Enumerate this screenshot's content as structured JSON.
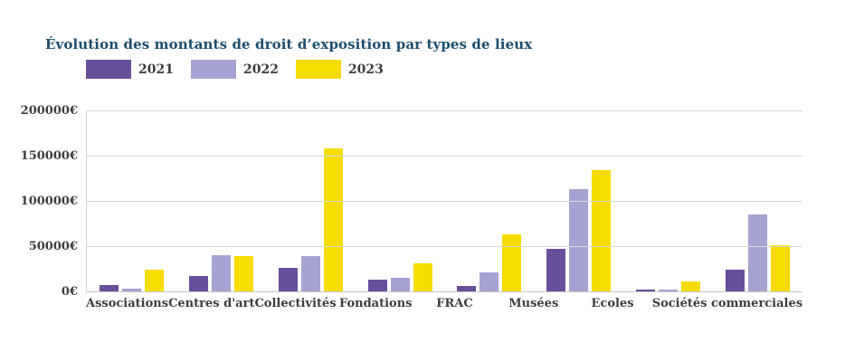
{
  "title": "Évolution des montants de droit d’exposition par types de lieux",
  "colors": {
    "title_text": "#1e4e6e",
    "axis_text": "#3d3d3d",
    "gridline": "#d8d8d8",
    "series_2021": "#684f99",
    "series_2022": "#a5a3d1",
    "series_2023": "#f6dc00",
    "background": "#ffffff"
  },
  "chart_data": {
    "type": "bar",
    "title": "Évolution des montants de droit d’exposition par types de lieux",
    "categories": [
      "Associations",
      "Centres d'art",
      "Collectivités",
      "Fondations",
      "FRAC",
      "Musées",
      "Ecoles",
      "Sociétés commerciales"
    ],
    "series": [
      {
        "name": "2021",
        "color": "#684f99",
        "values": [
          7000,
          17000,
          26000,
          13000,
          6000,
          47000,
          1500,
          24000
        ]
      },
      {
        "name": "2022",
        "color": "#a5a3d1",
        "values": [
          3000,
          40000,
          39000,
          15000,
          21000,
          113000,
          1500,
          85000
        ]
      },
      {
        "name": "2023",
        "color": "#f6dc00",
        "values": [
          24000,
          39000,
          158000,
          31000,
          63000,
          134000,
          11000,
          51000
        ]
      }
    ],
    "xlabel": "",
    "ylabel": "",
    "ylim": [
      0,
      200000
    ],
    "y_tick_values": [
      0,
      50000,
      100000,
      150000,
      200000
    ],
    "y_tick_labels": [
      "0€",
      "50000€",
      "100000€",
      "150000€",
      "200000€"
    ],
    "currency_suffix": "€",
    "grid": true,
    "legend_position": "top-left"
  }
}
